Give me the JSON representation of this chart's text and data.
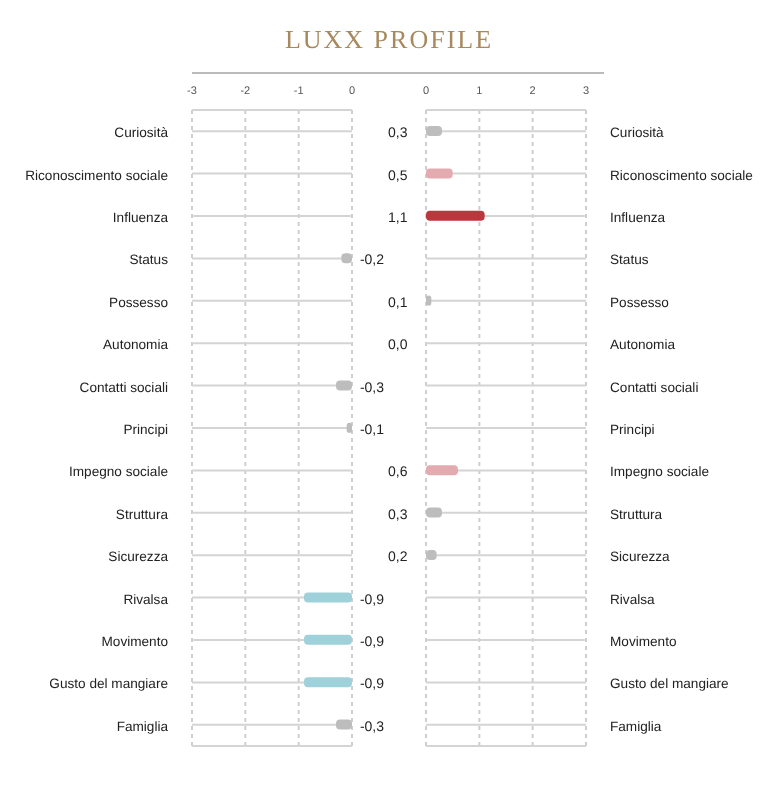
{
  "chart_data": [
    {
      "type": "bar",
      "orientation": "horizontal",
      "title": "LUXX PROFILE",
      "categories": [
        "Curiosità",
        "Riconoscimento sociale",
        "Influenza",
        "Status",
        "Possesso",
        "Autonomia",
        "Contatti sociali",
        "Principi",
        "Impegno sociale",
        "Struttura",
        "Sicurezza",
        "Rivalsa",
        "Movimento",
        "Gusto del mangiare",
        "Famiglia"
      ],
      "values": [
        null,
        null,
        null,
        -0.2,
        null,
        null,
        -0.3,
        -0.1,
        null,
        null,
        null,
        -0.9,
        -0.9,
        -0.9,
        -0.3
      ],
      "colors": [
        null,
        null,
        null,
        "#bdbdbd",
        null,
        null,
        "#bdbdbd",
        "#bdbdbd",
        null,
        null,
        null,
        "#9fd1da",
        "#9fd1da",
        "#9fd1da",
        "#bdbdbd"
      ],
      "value_labels": [
        null,
        null,
        null,
        "-0,2",
        null,
        null,
        "-0,3",
        "-0,1",
        null,
        null,
        null,
        "-0,9",
        "-0,9",
        "-0,9",
        "-0,3"
      ],
      "xlim": [
        -3,
        0
      ],
      "xticks": [
        -3,
        -2,
        -1,
        0
      ],
      "grid": true
    },
    {
      "type": "bar",
      "orientation": "horizontal",
      "categories": [
        "Curiosità",
        "Riconoscimento sociale",
        "Influenza",
        "Status",
        "Possesso",
        "Autonomia",
        "Contatti sociali",
        "Principi",
        "Impegno sociale",
        "Struttura",
        "Sicurezza",
        "Rivalsa",
        "Movimento",
        "Gusto del mangiare",
        "Famiglia"
      ],
      "values": [
        0.3,
        0.5,
        1.1,
        null,
        0.1,
        0.0,
        null,
        null,
        0.6,
        0.3,
        0.2,
        null,
        null,
        null,
        null
      ],
      "colors": [
        "#bdbdbd",
        "#e3aab0",
        "#b9373d",
        null,
        "#bdbdbd",
        "#bdbdbd",
        null,
        null,
        "#e3aab0",
        "#bdbdbd",
        "#bdbdbd",
        null,
        null,
        null,
        null
      ],
      "value_labels": [
        "0,3",
        "0,5",
        "1,1",
        null,
        "0,1",
        "0,0",
        null,
        null,
        "0,6",
        "0,3",
        "0,2",
        null,
        null,
        null,
        null
      ],
      "xlim": [
        0,
        3
      ],
      "xticks": [
        0,
        1,
        2,
        3
      ],
      "grid": true
    }
  ]
}
